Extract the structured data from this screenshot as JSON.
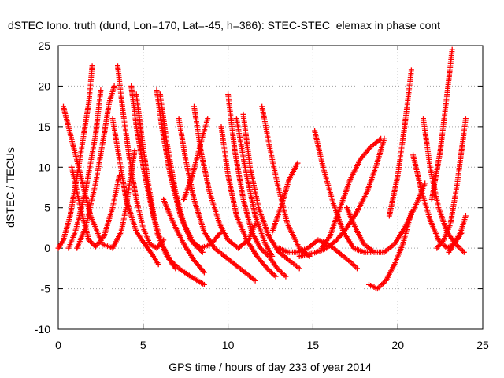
{
  "chart_data": {
    "type": "scatter",
    "title": "dSTEC Iono. truth (dund, Lon=170, Lat=-45, h=386): STEC-STEC_elemax in phase cont",
    "xlabel": "GPS time / hours of day 233 of year 2014",
    "ylabel": "dSTEC  / TECUs",
    "xlim": [
      0,
      25
    ],
    "ylim": [
      -10,
      25
    ],
    "xticks": [
      0,
      5,
      10,
      15,
      20,
      25
    ],
    "yticks": [
      -10,
      -5,
      0,
      5,
      10,
      15,
      20,
      25
    ],
    "grid": true,
    "marker": "+",
    "color": "#ff0000",
    "series": [
      {
        "x": [
          0.0,
          0.3,
          0.7,
          1.2,
          1.8,
          2.0
        ],
        "y": [
          0.0,
          1.0,
          4.0,
          10.0,
          18.0,
          22.5
        ]
      },
      {
        "x": [
          0.3,
          0.6,
          1.2,
          1.9,
          2.6,
          3.2,
          3.7,
          4.0,
          4.2,
          4.5
        ],
        "y": [
          17.5,
          15.0,
          10.0,
          4.0,
          0.5,
          0.0,
          2.0,
          5.0,
          8.0,
          12.0
        ]
      },
      {
        "x": [
          0.6,
          1.0,
          1.6,
          2.2,
          2.5
        ],
        "y": [
          0.0,
          2.0,
          7.0,
          14.0,
          19.5
        ]
      },
      {
        "x": [
          0.8,
          1.3,
          1.8,
          2.2,
          2.7,
          3.2,
          3.6
        ],
        "y": [
          10.0,
          5.0,
          1.0,
          0.2,
          1.5,
          5.0,
          9.0
        ]
      },
      {
        "x": [
          1.1,
          1.6,
          2.2,
          2.7,
          3.0,
          3.3
        ],
        "y": [
          0.0,
          2.5,
          8.0,
          14.0,
          18.0,
          20.0
        ]
      },
      {
        "x": [
          3.2,
          3.6,
          4.0,
          4.6,
          5.2,
          5.6,
          5.9
        ],
        "y": [
          16.0,
          11.0,
          6.0,
          2.0,
          0.2,
          -1.0,
          -2.0
        ]
      },
      {
        "x": [
          3.5,
          3.8,
          4.2,
          4.6,
          5.0,
          5.4,
          5.8,
          6.2
        ],
        "y": [
          22.5,
          17.0,
          11.0,
          6.0,
          2.5,
          0.5,
          0.0,
          1.0
        ]
      },
      {
        "x": [
          4.3,
          4.6,
          5.1,
          5.6,
          6.1,
          6.6,
          7.1,
          7.8,
          8.6
        ],
        "y": [
          20.0,
          15.0,
          9.0,
          4.0,
          0.5,
          -1.5,
          -2.5,
          -3.5,
          -4.5
        ]
      },
      {
        "x": [
          4.6,
          4.9,
          5.3,
          5.8,
          6.4,
          6.9
        ],
        "y": [
          19.0,
          14.0,
          8.0,
          2.0,
          -1.0,
          -2.5
        ]
      },
      {
        "x": [
          5.8,
          6.1,
          6.6,
          7.2,
          7.8,
          8.4,
          9.0,
          9.6
        ],
        "y": [
          19.5,
          15.0,
          9.0,
          4.0,
          1.0,
          0.0,
          0.5,
          2.0
        ]
      },
      {
        "x": [
          6.0,
          6.4,
          6.9,
          7.4,
          8.0,
          8.5
        ],
        "y": [
          19.0,
          13.0,
          7.0,
          3.0,
          0.5,
          -0.5
        ]
      },
      {
        "x": [
          6.2,
          6.8,
          7.4,
          8.0,
          8.6
        ],
        "y": [
          6.0,
          3.0,
          0.5,
          -1.5,
          -3.0
        ]
      },
      {
        "x": [
          7.1,
          7.5,
          8.0,
          8.6,
          9.2,
          9.8,
          10.4,
          11.0,
          11.6
        ],
        "y": [
          16.0,
          11.0,
          6.0,
          2.0,
          0.0,
          -1.0,
          -2.0,
          -3.0,
          -4.0
        ]
      },
      {
        "x": [
          7.4,
          7.9,
          8.4,
          8.8
        ],
        "y": [
          6.0,
          9.0,
          13.0,
          16.0
        ]
      },
      {
        "x": [
          8.0,
          8.4,
          8.9,
          9.5,
          10.0,
          10.6,
          11.2,
          11.6
        ],
        "y": [
          17.5,
          12.0,
          7.0,
          3.0,
          1.0,
          0.0,
          1.0,
          3.0
        ]
      },
      {
        "x": [
          9.6,
          10.0,
          10.5,
          11.1,
          11.7,
          12.3,
          12.8
        ],
        "y": [
          15.0,
          9.0,
          4.0,
          1.0,
          -1.0,
          -2.5,
          -3.5
        ]
      },
      {
        "x": [
          10.0,
          10.4,
          10.9,
          11.4,
          11.9,
          12.4,
          12.9,
          13.4
        ],
        "y": [
          19.0,
          12.0,
          6.0,
          2.0,
          0.0,
          -1.0,
          -2.5,
          -3.5
        ]
      },
      {
        "x": [
          10.5,
          11.0,
          11.6,
          12.2,
          12.6
        ],
        "y": [
          16.0,
          10.0,
          4.0,
          0.5,
          -1.0
        ]
      },
      {
        "x": [
          10.9,
          11.3,
          11.8,
          12.4,
          13.0,
          13.6,
          14.2
        ],
        "y": [
          16.5,
          10.0,
          5.0,
          1.5,
          -0.5,
          -1.5,
          -2.5
        ]
      },
      {
        "x": [
          12.0,
          12.4,
          12.9,
          13.5,
          14.2,
          14.8
        ],
        "y": [
          17.5,
          13.0,
          8.0,
          3.0,
          0.0,
          -1.0
        ]
      },
      {
        "x": [
          12.6,
          13.1,
          13.6,
          14.1
        ],
        "y": [
          2.0,
          5.0,
          8.5,
          10.5
        ]
      },
      {
        "x": [
          13.0,
          13.5,
          14.1,
          14.7,
          15.3,
          15.9,
          16.5,
          17.1,
          17.6
        ],
        "y": [
          0.0,
          -0.5,
          -0.5,
          0.0,
          1.0,
          0.5,
          -0.5,
          -1.5,
          -2.5
        ]
      },
      {
        "x": [
          14.2,
          14.7,
          15.2,
          15.8,
          16.4,
          17.0,
          17.6,
          18.2,
          18.7,
          19.2
        ],
        "y": [
          -1.0,
          -0.8,
          -0.5,
          0.0,
          1.0,
          2.5,
          4.5,
          7.0,
          10.0,
          13.5
        ]
      },
      {
        "x": [
          15.1,
          15.6,
          16.2,
          16.8,
          17.4,
          18.0,
          18.4
        ],
        "y": [
          14.5,
          10.0,
          5.5,
          2.0,
          0.0,
          -0.5,
          -0.5
        ]
      },
      {
        "x": [
          15.5,
          16.0,
          16.6,
          17.2,
          17.8,
          18.4,
          19.0
        ],
        "y": [
          0.0,
          1.5,
          5.0,
          8.5,
          11.0,
          12.5,
          13.5
        ]
      },
      {
        "x": [
          17.0,
          17.5,
          18.0,
          18.6,
          19.2,
          19.8,
          20.4,
          21.0,
          21.6
        ],
        "y": [
          5.0,
          2.5,
          0.5,
          -0.5,
          -0.5,
          0.5,
          2.5,
          5.0,
          8.0
        ]
      },
      {
        "x": [
          18.3,
          18.8,
          19.3,
          19.8,
          20.3,
          20.8
        ],
        "y": [
          -4.5,
          -5.0,
          -4.0,
          -2.0,
          0.5,
          4.5
        ]
      },
      {
        "x": [
          19.5,
          20.0,
          20.4,
          20.8
        ],
        "y": [
          4.0,
          9.0,
          15.0,
          22.0
        ]
      },
      {
        "x": [
          20.9,
          21.4,
          21.9,
          22.4,
          22.9,
          23.3,
          23.8
        ],
        "y": [
          11.5,
          7.0,
          3.5,
          1.0,
          0.0,
          0.5,
          2.0
        ]
      },
      {
        "x": [
          21.5,
          21.9,
          22.4,
          22.9,
          23.4,
          23.9
        ],
        "y": [
          16.0,
          10.0,
          5.0,
          2.0,
          0.5,
          -0.5
        ]
      },
      {
        "x": [
          22.0,
          22.5,
          22.9,
          23.2
        ],
        "y": [
          6.0,
          12.0,
          19.0,
          24.5
        ]
      },
      {
        "x": [
          22.3,
          22.7,
          23.1,
          23.5,
          24.0
        ],
        "y": [
          0.0,
          1.0,
          3.0,
          8.0,
          16.0
        ]
      },
      {
        "x": [
          23.0,
          23.3,
          23.7,
          24.0
        ],
        "y": [
          -0.5,
          0.5,
          2.0,
          4.0
        ]
      }
    ]
  }
}
